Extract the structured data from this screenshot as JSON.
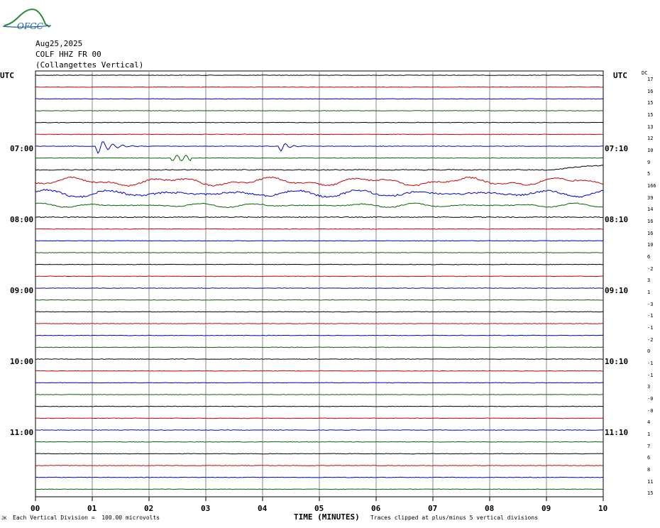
{
  "logo": {
    "text": "OFGC"
  },
  "header": {
    "date": "Aug25,2025",
    "station": "COLF HHZ FR 00",
    "location": "(Collangettes Vertical)"
  },
  "axis": {
    "utc_left": "UTC",
    "utc_right": "UTC",
    "dc_header": "DC",
    "xlabel": "TIME (MINUTES)",
    "xticks": [
      "00",
      "01",
      "02",
      "03",
      "04",
      "05",
      "06",
      "07",
      "08",
      "09",
      "10"
    ],
    "left_times": [
      "07:00",
      "08:00",
      "09:00",
      "10:00",
      "11:00"
    ],
    "right_times": [
      "07:10",
      "08:10",
      "09:10",
      "10:10",
      "11:10"
    ]
  },
  "footer": {
    "scale_prefix": "JK",
    "scale": "Each Vertical Division =  100.00 microvolts",
    "clip": "Traces clipped at plus/minus 5 vertical divisions"
  },
  "chart_data": {
    "type": "line",
    "xlim": [
      0,
      10
    ],
    "trace_colors": [
      "#000000",
      "#cc0000",
      "#0000cc",
      "#006600"
    ],
    "dc_offsets": [
      "17",
      "16",
      "15",
      "15",
      "13",
      "12",
      "10",
      "9",
      "5",
      "166",
      "39",
      "14",
      "16",
      "16",
      "10",
      "6",
      "-2",
      "3",
      "1",
      "-3",
      "-1",
      "-1",
      "-2",
      "0",
      "-1",
      "-1",
      "3",
      "-0",
      "-0",
      "4",
      "1",
      "7",
      "6",
      "8",
      "11",
      "15"
    ],
    "events": [
      {
        "trace": 6,
        "minute": 1.05,
        "note": "large oscillation"
      },
      {
        "trace": 6,
        "minute": 4.3,
        "note": "oscillation"
      },
      {
        "trace": 9,
        "note": "microseism, elevated"
      },
      {
        "trace": 10,
        "note": "microseism, elevated"
      }
    ]
  }
}
